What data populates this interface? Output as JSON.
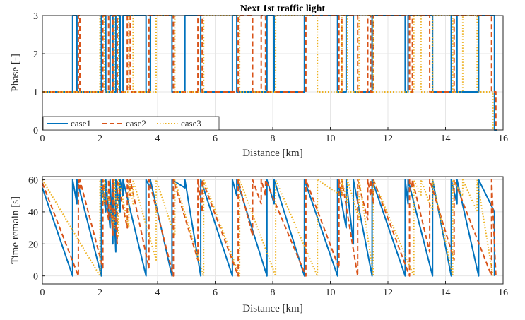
{
  "colors": {
    "case1": "#0072BD",
    "case2": "#D95319",
    "case3": "#EDB120"
  },
  "chart_data": [
    {
      "type": "line",
      "title": "Next 1st traffic light",
      "xlabel": "Distance [km]",
      "ylabel": "Phase [-]",
      "xlim": [
        0,
        16
      ],
      "ylim": [
        0,
        3
      ],
      "xticks": [
        "0",
        "2",
        "4",
        "6",
        "8",
        "10",
        "12",
        "14",
        "16"
      ],
      "yticks": [
        "0",
        "1",
        "2",
        "3"
      ],
      "grid": true,
      "legend": {
        "placement": "bottom-left",
        "orientation": "horizontal"
      },
      "series": [
        {
          "name": "case1",
          "style": "solid",
          "x": [
            0,
            1.05,
            1.05,
            1.2,
            1.2,
            2.05,
            2.05,
            2.2,
            2.2,
            2.35,
            2.35,
            2.45,
            2.45,
            2.55,
            2.55,
            2.7,
            2.7,
            2.8,
            2.8,
            3.6,
            3.6,
            3.75,
            3.75,
            4.5,
            4.5,
            4.95,
            4.95,
            5.5,
            5.5,
            6.6,
            6.6,
            6.75,
            6.75,
            7.8,
            7.8,
            8.05,
            8.05,
            9.1,
            9.1,
            10.25,
            10.25,
            10.55,
            10.55,
            10.8,
            10.8,
            11.45,
            11.45,
            12.6,
            12.6,
            12.7,
            12.7,
            13.55,
            13.55,
            14.2,
            14.2,
            14.4,
            14.4,
            15.15,
            15.15,
            15.7,
            15.7,
            15.8,
            15.8
          ],
          "y": [
            1,
            1,
            3,
            3,
            1,
            1,
            3,
            3,
            1,
            1,
            3,
            3,
            1,
            1,
            3,
            3,
            1,
            1,
            3,
            3,
            1,
            1,
            3,
            3,
            1,
            1,
            3,
            3,
            1,
            1,
            3,
            3,
            1,
            1,
            3,
            3,
            1,
            1,
            3,
            3,
            1,
            1,
            3,
            3,
            1,
            1,
            3,
            3,
            1,
            1,
            3,
            3,
            1,
            1,
            3,
            3,
            1,
            1,
            3,
            3,
            0,
            0,
            0
          ]
        },
        {
          "name": "case2",
          "style": "dashed",
          "x": [
            0,
            1.25,
            1.25,
            1.3,
            1.3,
            2.1,
            2.1,
            2.3,
            2.3,
            2.45,
            2.45,
            2.6,
            2.6,
            2.95,
            2.95,
            3.05,
            3.05,
            3.7,
            3.7,
            4.55,
            4.55,
            5.4,
            5.4,
            5.55,
            5.55,
            6.8,
            6.8,
            7.3,
            7.3,
            7.6,
            7.6,
            7.75,
            7.75,
            9.15,
            9.15,
            10.3,
            10.3,
            10.4,
            10.4,
            10.95,
            10.95,
            11.3,
            11.3,
            11.4,
            11.4,
            11.5,
            11.5,
            12.75,
            12.75,
            12.85,
            12.85,
            13.45,
            13.45,
            14.3,
            14.3,
            15.6,
            15.6,
            15.75,
            15.75
          ],
          "y": [
            1,
            1,
            3,
            3,
            1,
            1,
            3,
            3,
            1,
            1,
            3,
            3,
            1,
            1,
            3,
            3,
            1,
            1,
            3,
            3,
            1,
            1,
            3,
            3,
            1,
            1,
            3,
            3,
            1,
            1,
            3,
            3,
            1,
            1,
            3,
            3,
            1,
            1,
            3,
            3,
            1,
            1,
            3,
            3,
            1,
            1,
            3,
            3,
            1,
            1,
            3,
            3,
            1,
            1,
            3,
            3,
            1,
            1,
            0
          ]
        },
        {
          "name": "case3",
          "style": "dotted",
          "x": [
            0,
            2.0,
            2.0,
            2.15,
            2.15,
            2.5,
            2.5,
            2.65,
            2.65,
            3.0,
            3.0,
            3.15,
            3.15,
            3.95,
            3.95,
            4.6,
            4.6,
            5.6,
            5.6,
            6.85,
            6.85,
            8.1,
            8.1,
            9.55,
            9.55,
            10.4,
            10.4,
            10.6,
            10.6,
            11.0,
            11.0,
            11.5,
            11.5,
            12.9,
            12.9,
            13.15,
            13.15,
            13.55,
            13.55,
            14.25,
            14.25,
            14.6,
            14.6,
            15.1,
            15.1,
            15.65,
            15.65
          ],
          "y": [
            1,
            1,
            3,
            3,
            1,
            1,
            3,
            3,
            1,
            1,
            3,
            3,
            1,
            1,
            3,
            3,
            1,
            1,
            3,
            3,
            1,
            1,
            3,
            3,
            1,
            1,
            3,
            3,
            1,
            1,
            3,
            3,
            1,
            1,
            3,
            3,
            1,
            1,
            3,
            3,
            1,
            1,
            3,
            3,
            1,
            1,
            0
          ]
        }
      ]
    },
    {
      "type": "line",
      "title": "",
      "xlabel": "Distance [km]",
      "ylabel": "Time remain [s]",
      "xlim": [
        0,
        16
      ],
      "ylim": [
        -5,
        62
      ],
      "xticks": [
        "0",
        "2",
        "4",
        "6",
        "8",
        "10",
        "12",
        "14",
        "16"
      ],
      "yticks": [
        "0",
        "20",
        "40",
        "60"
      ],
      "grid": true,
      "series": [
        {
          "name": "case1",
          "style": "solid",
          "x": [
            0,
            1.05,
            1.05,
            1.2,
            1.2,
            2.05,
            2.05,
            2.2,
            2.2,
            2.35,
            2.35,
            2.45,
            2.45,
            2.55,
            2.55,
            2.7,
            2.7,
            2.8,
            2.8,
            3.6,
            3.6,
            3.75,
            3.75,
            4.5,
            4.5,
            4.95,
            4.95,
            5.5,
            5.5,
            6.6,
            6.6,
            6.75,
            6.75,
            7.8,
            7.8,
            8.05,
            8.05,
            9.1,
            9.1,
            10.25,
            10.25,
            10.55,
            10.55,
            10.8,
            10.8,
            11.45,
            11.45,
            12.6,
            12.6,
            12.7,
            12.7,
            13.55,
            13.55,
            14.2,
            14.2,
            14.4,
            14.4,
            15.15,
            15.15,
            15.7,
            15.7
          ],
          "y": [
            55,
            0,
            60,
            45,
            60,
            0,
            60,
            40,
            60,
            30,
            60,
            20,
            60,
            15,
            60,
            40,
            60,
            50,
            60,
            0,
            60,
            55,
            60,
            0,
            60,
            55,
            60,
            0,
            60,
            0,
            60,
            50,
            60,
            0,
            60,
            45,
            60,
            0,
            60,
            0,
            60,
            30,
            60,
            20,
            60,
            0,
            60,
            0,
            60,
            45,
            60,
            0,
            60,
            0,
            60,
            45,
            60,
            0,
            60,
            40,
            0
          ]
        },
        {
          "name": "case2",
          "style": "dashed",
          "x": [
            0,
            1.25,
            1.25,
            1.3,
            1.3,
            2.1,
            2.1,
            2.3,
            2.3,
            2.45,
            2.45,
            2.6,
            2.6,
            2.95,
            2.95,
            3.05,
            3.05,
            3.7,
            3.7,
            4.55,
            4.55,
            5.4,
            5.4,
            5.55,
            5.55,
            6.8,
            6.8,
            7.3,
            7.3,
            7.6,
            7.6,
            7.75,
            7.75,
            9.15,
            9.15,
            10.3,
            10.3,
            10.4,
            10.4,
            10.95,
            10.95,
            11.3,
            11.3,
            11.4,
            11.4,
            11.5,
            11.5,
            12.75,
            12.75,
            12.85,
            12.85,
            13.45,
            13.45,
            14.3,
            14.3,
            15.6,
            15.6,
            15.75,
            15.75
          ],
          "y": [
            58,
            0,
            60,
            55,
            60,
            5,
            60,
            35,
            60,
            25,
            60,
            20,
            60,
            30,
            60,
            50,
            60,
            5,
            60,
            0,
            60,
            10,
            60,
            40,
            60,
            0,
            60,
            25,
            60,
            45,
            60,
            50,
            60,
            0,
            60,
            5,
            60,
            50,
            60,
            0,
            60,
            35,
            60,
            50,
            60,
            45,
            60,
            0,
            60,
            55,
            60,
            15,
            60,
            10,
            60,
            0,
            60,
            0,
            0
          ]
        },
        {
          "name": "case3",
          "style": "dotted",
          "x": [
            0,
            2.0,
            2.0,
            2.15,
            2.15,
            2.5,
            2.5,
            2.65,
            2.65,
            3.0,
            3.0,
            3.15,
            3.15,
            3.95,
            3.95,
            4.6,
            4.6,
            5.6,
            5.6,
            6.85,
            6.85,
            8.1,
            8.1,
            9.55,
            9.55,
            10.4,
            10.4,
            10.6,
            10.6,
            11.0,
            11.0,
            11.5,
            11.5,
            12.9,
            12.9,
            13.15,
            13.15,
            13.55,
            13.55,
            14.25,
            14.25,
            14.6,
            14.6,
            15.1,
            15.1,
            15.65,
            15.65
          ],
          "y": [
            60,
            0,
            60,
            45,
            60,
            30,
            60,
            25,
            60,
            30,
            60,
            45,
            60,
            10,
            60,
            25,
            60,
            0,
            60,
            0,
            60,
            0,
            60,
            0,
            60,
            50,
            60,
            45,
            60,
            35,
            60,
            0,
            60,
            0,
            60,
            50,
            60,
            40,
            60,
            0,
            60,
            50,
            60,
            40,
            60,
            0,
            0
          ]
        }
      ]
    }
  ]
}
